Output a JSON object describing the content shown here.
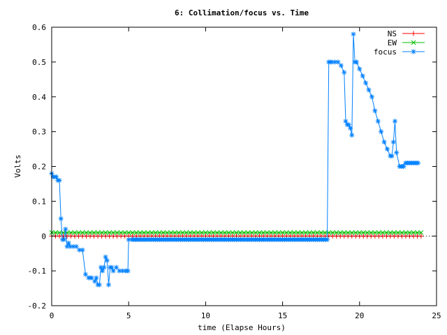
{
  "chart_data": {
    "type": "line",
    "title": "6: Collimation/focus vs. Time",
    "xlabel": "time (Elapse Hours)",
    "ylabel": "Volts",
    "xlim": [
      0,
      25
    ],
    "ylim": [
      -0.2,
      0.6
    ],
    "xticks": [
      0,
      5,
      10,
      15,
      20,
      25
    ],
    "yticks": [
      -0.2,
      -0.1,
      0,
      0.1,
      0.2,
      0.3,
      0.4,
      0.5,
      0.6
    ],
    "xtick_labels": [
      "0",
      "5",
      "10",
      "15",
      "20",
      "25"
    ],
    "ytick_labels": [
      "-0.2",
      "-0.1",
      "0",
      "0.1",
      "0.2",
      "0.3",
      "0.4",
      "0.5",
      "0.6"
    ],
    "grid": false,
    "legend_position": "top-right",
    "series": [
      {
        "name": "NS",
        "color": "#ff0000",
        "marker": "plus",
        "x": [
          0,
          24
        ],
        "y": [
          0.0,
          0.0
        ]
      },
      {
        "name": "EW",
        "color": "#00c000",
        "marker": "cross",
        "x": [
          0,
          24
        ],
        "y": [
          0.01,
          0.01
        ]
      },
      {
        "name": "focus",
        "color": "#0080ff",
        "marker": "star",
        "x": [
          0.0,
          0.1,
          0.2,
          0.3,
          0.4,
          0.5,
          0.6,
          0.7,
          0.8,
          0.9,
          1.0,
          1.1,
          1.2,
          1.4,
          1.6,
          1.8,
          2.0,
          2.2,
          2.4,
          2.5,
          2.6,
          2.8,
          2.9,
          3.0,
          3.1,
          3.2,
          3.3,
          3.4,
          3.5,
          3.6,
          3.7,
          3.8,
          3.9,
          4.0,
          4.2,
          4.4,
          4.6,
          4.8,
          4.95,
          5.0,
          5.2,
          6.0,
          8.0,
          10.0,
          12.0,
          14.0,
          16.0,
          17.9,
          18.0,
          18.1,
          18.2,
          18.4,
          18.6,
          18.8,
          19.0,
          19.1,
          19.2,
          19.3,
          19.4,
          19.5,
          19.6,
          19.7,
          19.8,
          20.0,
          20.2,
          20.4,
          20.6,
          20.8,
          21.0,
          21.2,
          21.4,
          21.6,
          21.8,
          22.0,
          22.1,
          22.2,
          22.3,
          22.4,
          22.6,
          23.0,
          23.4,
          23.8
        ],
        "y": [
          0.18,
          0.17,
          0.17,
          0.17,
          0.16,
          0.16,
          0.05,
          -0.01,
          -0.01,
          0.02,
          -0.03,
          -0.02,
          -0.03,
          -0.03,
          -0.03,
          -0.04,
          -0.04,
          -0.11,
          -0.12,
          -0.12,
          -0.12,
          -0.13,
          -0.12,
          -0.14,
          -0.14,
          -0.09,
          -0.1,
          -0.09,
          -0.06,
          -0.07,
          -0.14,
          -0.09,
          -0.09,
          -0.1,
          -0.09,
          -0.1,
          -0.1,
          -0.1,
          -0.1,
          -0.01,
          -0.01,
          -0.01,
          -0.01,
          -0.01,
          -0.01,
          -0.01,
          -0.01,
          -0.01,
          0.5,
          0.5,
          0.5,
          0.5,
          0.5,
          0.49,
          0.47,
          0.33,
          0.32,
          0.32,
          0.31,
          0.29,
          0.58,
          0.5,
          0.5,
          0.48,
          0.46,
          0.44,
          0.42,
          0.4,
          0.36,
          0.33,
          0.3,
          0.27,
          0.25,
          0.23,
          0.23,
          0.27,
          0.33,
          0.24,
          0.2,
          0.21,
          0.21,
          0.21
        ]
      }
    ]
  }
}
